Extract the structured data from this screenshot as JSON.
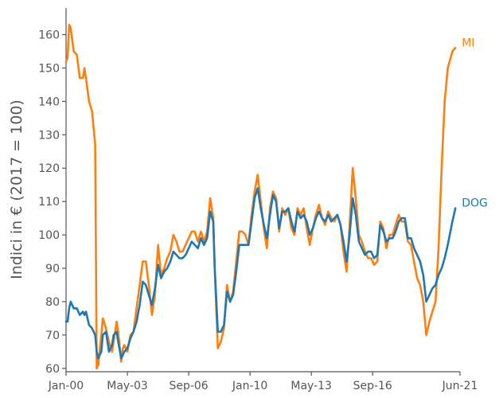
{
  "chart_data": {
    "type": "line",
    "ylabel": "Indici in € (2017 = 100)",
    "xlabel": "",
    "ylim": [
      59,
      168
    ],
    "yticks": [
      60,
      70,
      80,
      90,
      100,
      110,
      120,
      130,
      140,
      150,
      160
    ],
    "xlim": [
      "2000-01",
      "2021-06"
    ],
    "xticks": [
      {
        "date": "2000-01",
        "label": "Jan-00"
      },
      {
        "date": "2003-05",
        "label": "May-03"
      },
      {
        "date": "2006-09",
        "label": "Sep-06"
      },
      {
        "date": "2010-01",
        "label": "Jan-10"
      },
      {
        "date": "2013-05",
        "label": "May-13"
      },
      {
        "date": "2016-09",
        "label": "Sep-16"
      },
      {
        "date": "2021-06",
        "label": "Jun-21"
      }
    ],
    "grid": false,
    "legend": "inline labels at line ends",
    "series": [
      {
        "name": "MI",
        "color": "#ff7f0e",
        "points": [
          [
            "2000-01",
            152
          ],
          [
            "2000-02",
            153
          ],
          [
            "2000-03",
            163
          ],
          [
            "2000-04",
            162
          ],
          [
            "2000-06",
            155
          ],
          [
            "2000-08",
            154
          ],
          [
            "2000-10",
            147
          ],
          [
            "2000-12",
            147
          ],
          [
            "2001-01",
            150
          ],
          [
            "2001-02",
            147
          ],
          [
            "2001-04",
            140
          ],
          [
            "2001-06",
            137
          ],
          [
            "2001-08",
            127
          ],
          [
            "2001-09",
            60
          ],
          [
            "2001-10",
            61
          ],
          [
            "2001-12",
            70
          ],
          [
            "2002-01",
            75
          ],
          [
            "2002-03",
            72
          ],
          [
            "2002-05",
            68
          ],
          [
            "2002-07",
            65
          ],
          [
            "2002-08",
            68
          ],
          [
            "2002-10",
            74
          ],
          [
            "2002-11",
            71
          ],
          [
            "2003-01",
            62
          ],
          [
            "2003-02",
            66
          ],
          [
            "2003-03",
            67
          ],
          [
            "2003-05",
            65
          ],
          [
            "2003-07",
            70
          ],
          [
            "2003-09",
            71
          ],
          [
            "2003-11",
            78
          ],
          [
            "2004-01",
            85
          ],
          [
            "2004-03",
            92
          ],
          [
            "2004-05",
            92
          ],
          [
            "2004-07",
            85
          ],
          [
            "2004-09",
            76
          ],
          [
            "2004-11",
            82
          ],
          [
            "2005-01",
            97
          ],
          [
            "2005-03",
            88
          ],
          [
            "2005-05",
            90
          ],
          [
            "2005-07",
            93
          ],
          [
            "2005-09",
            95
          ],
          [
            "2005-11",
            100
          ],
          [
            "2006-01",
            98
          ],
          [
            "2006-03",
            95
          ],
          [
            "2006-05",
            95
          ],
          [
            "2006-07",
            97
          ],
          [
            "2006-09",
            99
          ],
          [
            "2006-11",
            101
          ],
          [
            "2007-01",
            101
          ],
          [
            "2007-03",
            98
          ],
          [
            "2007-05",
            101
          ],
          [
            "2007-07",
            98
          ],
          [
            "2007-09",
            101
          ],
          [
            "2007-11",
            111
          ],
          [
            "2008-01",
            105
          ],
          [
            "2008-02",
            90
          ],
          [
            "2008-04",
            66
          ],
          [
            "2008-06",
            68
          ],
          [
            "2008-08",
            72
          ],
          [
            "2008-10",
            85
          ],
          [
            "2008-12",
            80
          ],
          [
            "2009-02",
            83
          ],
          [
            "2009-04",
            92
          ],
          [
            "2009-06",
            101
          ],
          [
            "2009-08",
            101
          ],
          [
            "2009-10",
            100
          ],
          [
            "2009-12",
            97
          ],
          [
            "2010-02",
            106
          ],
          [
            "2010-04",
            113
          ],
          [
            "2010-06",
            118
          ],
          [
            "2010-08",
            110
          ],
          [
            "2010-10",
            102
          ],
          [
            "2010-12",
            96
          ],
          [
            "2011-02",
            108
          ],
          [
            "2011-04",
            113
          ],
          [
            "2011-06",
            111
          ],
          [
            "2011-08",
            101
          ],
          [
            "2011-10",
            108
          ],
          [
            "2011-12",
            106
          ],
          [
            "2012-02",
            108
          ],
          [
            "2012-04",
            102
          ],
          [
            "2012-06",
            100
          ],
          [
            "2012-08",
            108
          ],
          [
            "2012-10",
            106
          ],
          [
            "2012-12",
            108
          ],
          [
            "2013-02",
            102
          ],
          [
            "2013-04",
            97
          ],
          [
            "2013-06",
            102
          ],
          [
            "2013-08",
            106
          ],
          [
            "2013-10",
            109
          ],
          [
            "2013-12",
            105
          ],
          [
            "2014-02",
            103
          ],
          [
            "2014-04",
            107
          ],
          [
            "2014-06",
            105
          ],
          [
            "2014-08",
            104
          ],
          [
            "2014-10",
            106
          ],
          [
            "2014-12",
            103
          ],
          [
            "2015-02",
            95
          ],
          [
            "2015-04",
            89
          ],
          [
            "2015-06",
            103
          ],
          [
            "2015-08",
            120
          ],
          [
            "2015-10",
            111
          ],
          [
            "2015-12",
            100
          ],
          [
            "2016-02",
            98
          ],
          [
            "2016-04",
            95
          ],
          [
            "2016-06",
            93
          ],
          [
            "2016-08",
            93
          ],
          [
            "2016-10",
            91
          ],
          [
            "2016-12",
            92
          ],
          [
            "2017-02",
            104
          ],
          [
            "2017-04",
            102
          ],
          [
            "2017-06",
            96
          ],
          [
            "2017-08",
            100
          ],
          [
            "2017-10",
            100
          ],
          [
            "2017-12",
            103
          ],
          [
            "2018-02",
            106
          ],
          [
            "2018-04",
            104
          ],
          [
            "2018-06",
            104
          ],
          [
            "2018-08",
            98
          ],
          [
            "2018-10",
            97
          ],
          [
            "2018-12",
            92
          ],
          [
            "2019-02",
            87
          ],
          [
            "2019-04",
            85
          ],
          [
            "2019-06",
            80
          ],
          [
            "2019-08",
            70
          ],
          [
            "2019-10",
            74
          ],
          [
            "2019-12",
            77
          ],
          [
            "2020-02",
            80
          ],
          [
            "2020-04",
            96
          ],
          [
            "2020-06",
            120
          ],
          [
            "2020-08",
            140
          ],
          [
            "2020-10",
            150
          ],
          [
            "2021-01",
            155
          ],
          [
            "2021-03",
            156
          ]
        ]
      },
      {
        "name": "DOG",
        "color": "#1f77b4",
        "points": [
          [
            "2000-01",
            74
          ],
          [
            "2000-02",
            74
          ],
          [
            "2000-03",
            78
          ],
          [
            "2000-04",
            80
          ],
          [
            "2000-06",
            78
          ],
          [
            "2000-08",
            78
          ],
          [
            "2000-10",
            76
          ],
          [
            "2000-12",
            77
          ],
          [
            "2001-01",
            76
          ],
          [
            "2001-02",
            77
          ],
          [
            "2001-04",
            73
          ],
          [
            "2001-06",
            72
          ],
          [
            "2001-08",
            70
          ],
          [
            "2001-09",
            65
          ],
          [
            "2001-10",
            63
          ],
          [
            "2001-12",
            65
          ],
          [
            "2002-01",
            70
          ],
          [
            "2002-03",
            71
          ],
          [
            "2002-05",
            65
          ],
          [
            "2002-07",
            67
          ],
          [
            "2002-08",
            70
          ],
          [
            "2002-10",
            71
          ],
          [
            "2002-11",
            68
          ],
          [
            "2003-01",
            63
          ],
          [
            "2003-02",
            64
          ],
          [
            "2003-03",
            65
          ],
          [
            "2003-05",
            66
          ],
          [
            "2003-07",
            69
          ],
          [
            "2003-09",
            71
          ],
          [
            "2003-11",
            74
          ],
          [
            "2004-01",
            79
          ],
          [
            "2004-03",
            86
          ],
          [
            "2004-05",
            85
          ],
          [
            "2004-07",
            82
          ],
          [
            "2004-09",
            79
          ],
          [
            "2004-11",
            84
          ],
          [
            "2005-01",
            91
          ],
          [
            "2005-03",
            87
          ],
          [
            "2005-05",
            89
          ],
          [
            "2005-07",
            90
          ],
          [
            "2005-09",
            92
          ],
          [
            "2005-11",
            95
          ],
          [
            "2006-01",
            94
          ],
          [
            "2006-03",
            93
          ],
          [
            "2006-05",
            93
          ],
          [
            "2006-07",
            94
          ],
          [
            "2006-09",
            96
          ],
          [
            "2006-11",
            98
          ],
          [
            "2007-01",
            97
          ],
          [
            "2007-03",
            96
          ],
          [
            "2007-05",
            99
          ],
          [
            "2007-07",
            97
          ],
          [
            "2007-09",
            99
          ],
          [
            "2007-11",
            107
          ],
          [
            "2008-01",
            104
          ],
          [
            "2008-02",
            90
          ],
          [
            "2008-04",
            71
          ],
          [
            "2008-06",
            71
          ],
          [
            "2008-08",
            73
          ],
          [
            "2008-10",
            83
          ],
          [
            "2008-12",
            80
          ],
          [
            "2009-02",
            82
          ],
          [
            "2009-04",
            89
          ],
          [
            "2009-06",
            97
          ],
          [
            "2009-08",
            97
          ],
          [
            "2009-10",
            97
          ],
          [
            "2009-12",
            97
          ],
          [
            "2010-02",
            104
          ],
          [
            "2010-04",
            111
          ],
          [
            "2010-06",
            114
          ],
          [
            "2010-08",
            108
          ],
          [
            "2010-10",
            103
          ],
          [
            "2010-12",
            99
          ],
          [
            "2011-02",
            106
          ],
          [
            "2011-04",
            112
          ],
          [
            "2011-06",
            110
          ],
          [
            "2011-08",
            102
          ],
          [
            "2011-10",
            107
          ],
          [
            "2011-12",
            107
          ],
          [
            "2012-02",
            108
          ],
          [
            "2012-04",
            104
          ],
          [
            "2012-06",
            101
          ],
          [
            "2012-08",
            107
          ],
          [
            "2012-10",
            105
          ],
          [
            "2012-12",
            106
          ],
          [
            "2013-02",
            104
          ],
          [
            "2013-04",
            100
          ],
          [
            "2013-06",
            102
          ],
          [
            "2013-08",
            105
          ],
          [
            "2013-10",
            107
          ],
          [
            "2013-12",
            105
          ],
          [
            "2014-02",
            104
          ],
          [
            "2014-04",
            106
          ],
          [
            "2014-06",
            104
          ],
          [
            "2014-08",
            105
          ],
          [
            "2014-10",
            106
          ],
          [
            "2014-12",
            103
          ],
          [
            "2015-02",
            98
          ],
          [
            "2015-04",
            92
          ],
          [
            "2015-06",
            100
          ],
          [
            "2015-08",
            111
          ],
          [
            "2015-10",
            106
          ],
          [
            "2015-12",
            98
          ],
          [
            "2016-02",
            96
          ],
          [
            "2016-04",
            94
          ],
          [
            "2016-06",
            95
          ],
          [
            "2016-08",
            95
          ],
          [
            "2016-10",
            93
          ],
          [
            "2016-12",
            94
          ],
          [
            "2017-02",
            103
          ],
          [
            "2017-04",
            101
          ],
          [
            "2017-06",
            98
          ],
          [
            "2017-08",
            99
          ],
          [
            "2017-10",
            99
          ],
          [
            "2017-12",
            101
          ],
          [
            "2018-02",
            104
          ],
          [
            "2018-04",
            105
          ],
          [
            "2018-06",
            105
          ],
          [
            "2018-08",
            99
          ],
          [
            "2018-10",
            99
          ],
          [
            "2018-12",
            96
          ],
          [
            "2019-02",
            94
          ],
          [
            "2019-04",
            92
          ],
          [
            "2019-06",
            88
          ],
          [
            "2019-08",
            80
          ],
          [
            "2019-10",
            82
          ],
          [
            "2019-12",
            84
          ],
          [
            "2020-02",
            85
          ],
          [
            "2020-04",
            88
          ],
          [
            "2020-06",
            90
          ],
          [
            "2020-08",
            93
          ],
          [
            "2020-10",
            97
          ],
          [
            "2021-01",
            104
          ],
          [
            "2021-03",
            108
          ]
        ]
      }
    ]
  }
}
